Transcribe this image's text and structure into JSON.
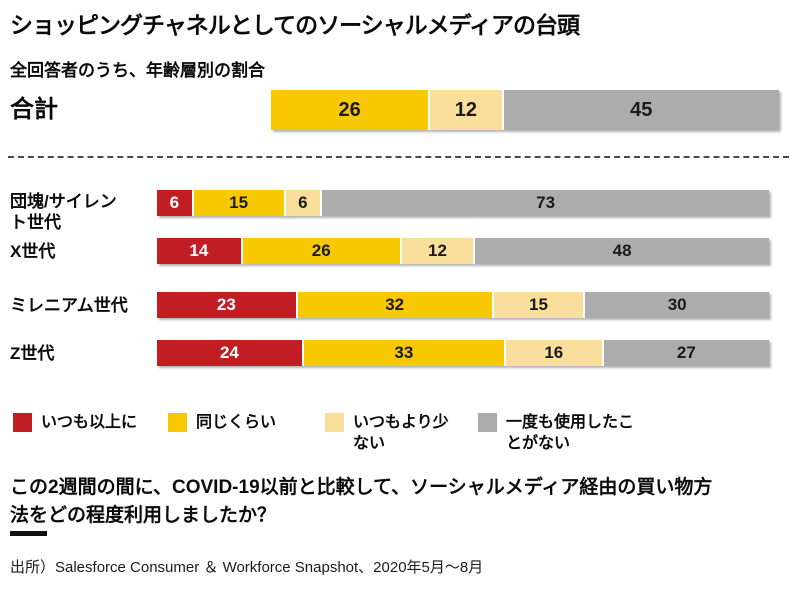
{
  "title": "ショッピングチャネルとしてのソーシャルメディアの台頭",
  "subtitle": "全回答者のうち、年齢層別の割合",
  "chart_data": {
    "type": "bar",
    "variant": "stacked-horizontal",
    "unit": "%",
    "xlim": [
      0,
      100
    ],
    "grid": false,
    "legend_position": "bottom",
    "legend": [
      {
        "label": "いつも以上に",
        "color": "#C01E24",
        "text_color": "#FFFFFF"
      },
      {
        "label": "同じくらい",
        "color": "#F8C900",
        "text_color": "#1A1A1A"
      },
      {
        "label": "いつもより少\nない",
        "color": "#FADE9C",
        "text_color": "#1A1A1A"
      },
      {
        "label": "一度も使用したこ\nとがない",
        "color": "#ACACAC",
        "text_color": "#1A1A1A"
      }
    ],
    "total": {
      "label": "合計",
      "left_gap_pct": 17,
      "series_indices": [
        1,
        2,
        3
      ],
      "values": [
        26,
        12,
        45
      ]
    },
    "rows": [
      {
        "label": "団塊/サイレン\nト世代",
        "values": [
          6,
          15,
          6,
          73
        ]
      },
      {
        "label": "X世代",
        "values": [
          14,
          26,
          12,
          48
        ]
      },
      {
        "label": "ミレニアム世代",
        "values": [
          23,
          32,
          15,
          30
        ]
      },
      {
        "label": "Z世代",
        "values": [
          24,
          33,
          16,
          27
        ]
      }
    ]
  },
  "question": "この2週間の間に、COVID-19以前と比較して、ソーシャルメディア経由の買い物方\n法をどの程度利用しましたか？",
  "source": "出所）Salesforce Consumer ＆ Workforce Snapshot、2020年5月～8月"
}
